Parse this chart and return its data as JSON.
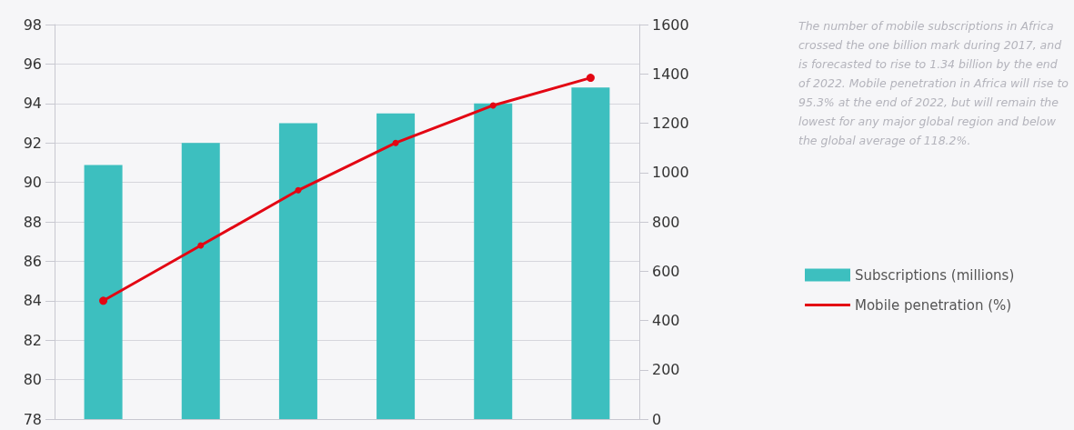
{
  "chart_data": {
    "type": "bar",
    "categories": [
      null,
      null,
      null,
      null,
      null,
      null
    ],
    "series": [
      {
        "name": "Subscriptions (millions)",
        "axis": "y2",
        "color": "#3dbfbf",
        "values": [
          1030,
          1120,
          1200,
          1240,
          1280,
          1345
        ]
      },
      {
        "name": "Mobile penetration (%)",
        "type": "line",
        "color": "#e30613",
        "values": [
          84.0,
          86.8,
          89.6,
          92.0,
          93.9,
          95.3
        ]
      }
    ],
    "ylim": [
      78,
      98
    ],
    "yticks": [
      78,
      80,
      82,
      84,
      86,
      88,
      90,
      92,
      94,
      96,
      98
    ],
    "y2lim": [
      0,
      1600
    ],
    "y2ticks": [
      0,
      200,
      400,
      600,
      800,
      1000,
      1200,
      1400,
      1600
    ],
    "grid": "y",
    "legend": "right",
    "marker": "circle",
    "line_style": "solid",
    "annotations": [
      "The number of mobile subscriptions in Africa crossed the one billion mark during 2017, and is forecasted to rise to 1.34 billion by the end of 2022. Mobile penetration in Africa will rise to 95.3% at the end of 2022, but will remain the lowest for any major global region and below the global average of 118.2%."
    ]
  }
}
